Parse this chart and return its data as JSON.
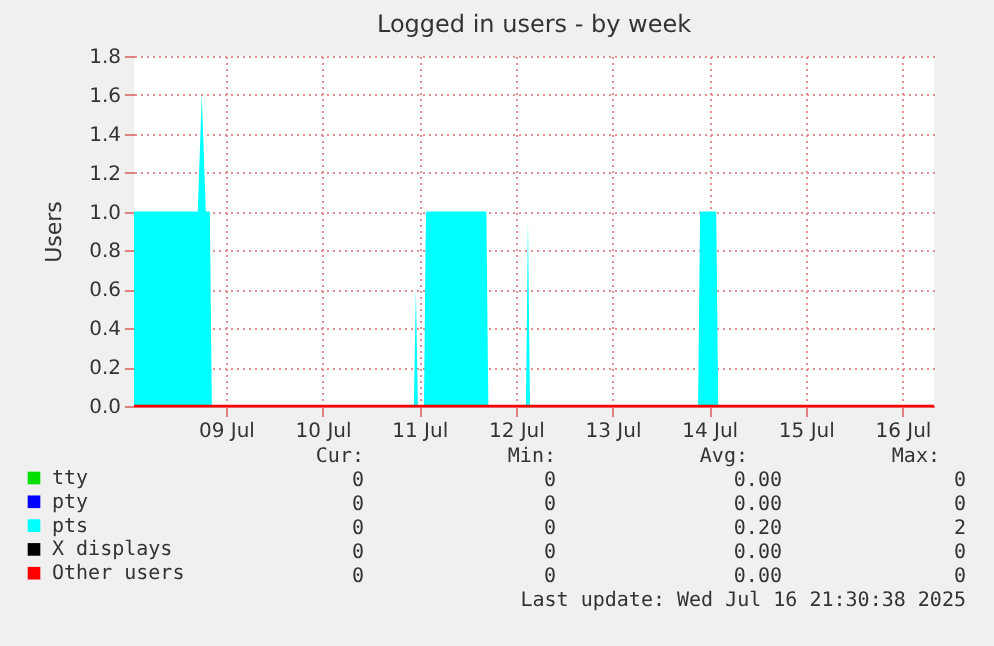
{
  "chart_data": {
    "type": "area",
    "title": "Logged in users - by week",
    "ylabel": "Users",
    "xlim": [
      "2025-07-08T01:10",
      "2025-07-16T07:50"
    ],
    "ylim": [
      0,
      1.8
    ],
    "xticks": [
      {
        "value": "2025-07-09",
        "label": "09 Jul"
      },
      {
        "value": "2025-07-10",
        "label": "10 Jul"
      },
      {
        "value": "2025-07-11",
        "label": "11 Jul"
      },
      {
        "value": "2025-07-12",
        "label": "12 Jul"
      },
      {
        "value": "2025-07-13",
        "label": "13 Jul"
      },
      {
        "value": "2025-07-14",
        "label": "14 Jul"
      },
      {
        "value": "2025-07-15",
        "label": "15 Jul"
      },
      {
        "value": "2025-07-16",
        "label": "16 Jul"
      }
    ],
    "yticks": [
      {
        "value": 0,
        "label": "0.0"
      },
      {
        "value": 0.2,
        "label": "0.2"
      },
      {
        "value": 0.4,
        "label": "0.4"
      },
      {
        "value": 0.6,
        "label": "0.6"
      },
      {
        "value": 0.8,
        "label": "0.8"
      },
      {
        "value": 1,
        "label": "1.0"
      },
      {
        "value": 1.2,
        "label": "1.2"
      },
      {
        "value": 1.4,
        "label": "1.4"
      },
      {
        "value": 1.6,
        "label": "1.6"
      },
      {
        "value": 1.8,
        "label": "1.8"
      }
    ],
    "grid": true,
    "legend": "bottom",
    "series": [
      {
        "name": "tty",
        "type": "line",
        "color": "#00e000"
      },
      {
        "name": "pty",
        "type": "line",
        "color": "#0000ff"
      },
      {
        "name": "pts",
        "color": "#00ffff",
        "x": [
          "2025-07-08T01:10",
          "2025-07-08T17:00",
          "2025-07-08T18:00",
          "2025-07-08T19:00",
          "2025-07-08T20:00",
          "2025-07-08T20:30",
          "2025-07-10T22:40",
          "2025-07-10T23:10",
          "2025-07-10T23:40",
          "2025-07-11T01:10",
          "2025-07-11T01:40",
          "2025-07-11T16:40",
          "2025-07-11T17:10",
          "2025-07-12T02:30",
          "2025-07-12T03:00",
          "2025-07-12T03:30",
          "2025-07-13T21:15",
          "2025-07-13T21:45",
          "2025-07-14T01:45",
          "2025-07-14T02:15",
          "2025-07-16T07:50"
        ],
        "values": [
          1,
          1,
          1.6,
          1,
          1,
          0,
          0,
          0.6,
          0,
          0,
          1,
          1,
          0,
          0,
          0.95,
          0,
          0,
          1,
          1,
          0,
          0
        ]
      },
      {
        "name": "X displays",
        "type": "line",
        "color": "#000000"
      },
      {
        "name": "Other users",
        "type": "line",
        "color": "#ff0000",
        "x": [
          "2025-07-08T01:10",
          "2025-07-16T07:50"
        ],
        "values": [
          0,
          0
        ]
      }
    ],
    "annotations": [
      "Cur:",
      "Min:",
      "Avg:",
      "Max:",
      "0",
      "0",
      "0.00",
      "0",
      "0",
      "0",
      "0.00",
      "0",
      "0",
      "0",
      "0.20",
      "2",
      "0",
      "0",
      "0.00",
      "0",
      "0",
      "0",
      "0.00",
      "0",
      "Last update: Wed Jul 16 21:30:38 2025"
    ]
  }
}
